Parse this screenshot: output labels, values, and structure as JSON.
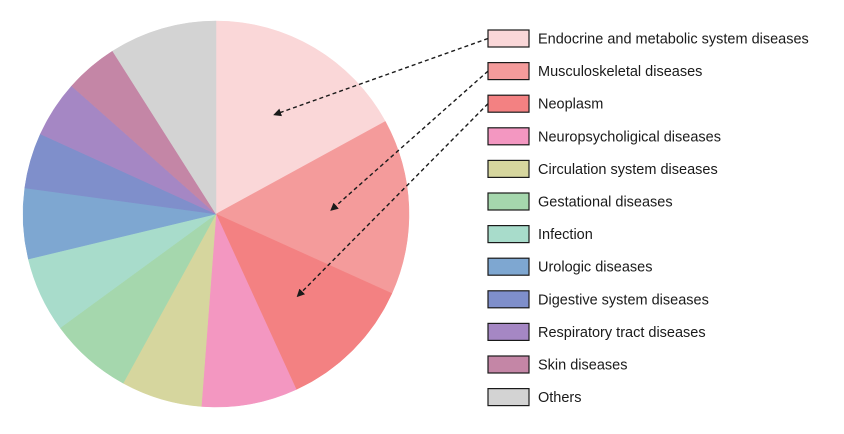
{
  "chart_data": {
    "type": "pie",
    "title": "",
    "start_angle_deg": 0,
    "direction": "clockwise",
    "slices": [
      {
        "label": "Endocrine and metabolic system diseases",
        "value": 17.6,
        "color": "#fad7d8"
      },
      {
        "label": "Musculoskeletal diseases",
        "value": 15.2,
        "color": "#f49b9b"
      },
      {
        "label": "Neoplasm",
        "value": 11.8,
        "color": "#f38182"
      },
      {
        "label": "Neuropsycholigical diseases",
        "value": 8.3,
        "color": "#f397c1"
      },
      {
        "label": "Circulation system diseases",
        "value": 7.0,
        "color": "#d6d69e"
      },
      {
        "label": "Gestational diseases",
        "value": 7.2,
        "color": "#a5d7ad"
      },
      {
        "label": "Infection",
        "value": 6.5,
        "color": "#a8dccb"
      },
      {
        "label": "Urologic diseases",
        "value": 6.1,
        "color": "#7ea7d1"
      },
      {
        "label": "Digestive system diseases",
        "value": 4.8,
        "color": "#7f8fcb"
      },
      {
        "label": "Respiratory tract diseases",
        "value": 4.9,
        "color": "#a587c4"
      },
      {
        "label": "Skin diseases",
        "value": 4.6,
        "color": "#c486a6"
      },
      {
        "label": "Others",
        "value": 9.3,
        "color": "#d3d3d3"
      }
    ],
    "legend_position": "right",
    "highlighted": [
      "Endocrine and metabolic system diseases",
      "Musculoskeletal diseases",
      "Neoplasm"
    ]
  }
}
